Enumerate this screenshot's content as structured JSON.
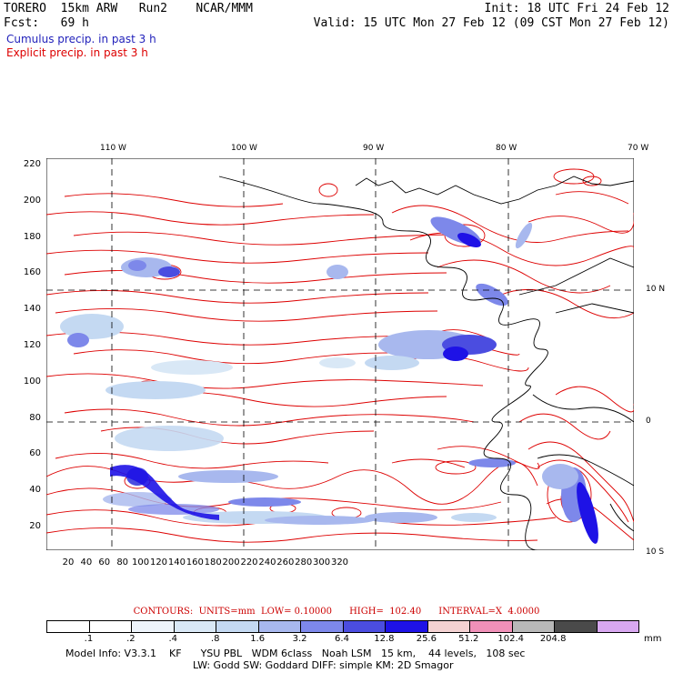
{
  "header": {
    "line1_left": "TORERO  15km ARW   Run2    NCAR/MMM",
    "line1_right": "Init: 18 UTC Fri 24 Feb 12",
    "line2_left": "Fcst:   69 h",
    "line2_right": "Valid: 15 UTC Mon 27 Feb 12 (09 CST Mon 27 Feb 12)"
  },
  "legend": {
    "cumulus": "Cumulus precip. in past 3 h",
    "explicit": "Explicit precip. in past 3 h",
    "cumulus_color": "#2222bb",
    "explicit_color": "#dd0000"
  },
  "map": {
    "y_ticks": [
      "220",
      "200",
      "180",
      "160",
      "140",
      "120",
      "100",
      "80",
      "60",
      "40",
      "20"
    ],
    "x_ticks": [
      "20",
      "40",
      "60",
      "80",
      "100",
      "120",
      "140",
      "160",
      "180",
      "200",
      "220",
      "240",
      "260",
      "280",
      "300",
      "320"
    ],
    "lon_labels": [
      "110 W",
      "100 W",
      "90 W",
      "80 W",
      "70 W"
    ],
    "lat_labels": [
      "10 N",
      "0",
      "10 S"
    ],
    "land_color": "#000000",
    "grid_color": "#000000"
  },
  "contours": {
    "text": "CONTOURS:  UNITS=mm  LOW= 0.10000      HIGH=  102.40      INTERVAL=X  4.0000"
  },
  "colorbar": {
    "labels": [
      ".1",
      ".2",
      ".4",
      ".8",
      "1.6",
      "3.2",
      "6.4",
      "12.8",
      "25.6",
      "51.2",
      "102.4",
      "204.8"
    ],
    "units": "mm",
    "colors": [
      "#ffffff",
      "#ffffff",
      "#eef4fb",
      "#d9e8f6",
      "#c4d9f2",
      "#a8b8ee",
      "#7d88ea",
      "#4b4de0",
      "#1e12e6",
      "#f4d2d2",
      "#f090b8",
      "#b8b8b8",
      "#4a4a4a",
      "#d8a8f0"
    ]
  },
  "footer": {
    "line1": "Model Info: V3.3.1    KF      YSU PBL   WDM 6class   Noah LSM   15 km,    44 levels,   108 sec",
    "line2": "LW: Godd SW: Goddard DIFF: simple KM: 2D Smagor"
  }
}
